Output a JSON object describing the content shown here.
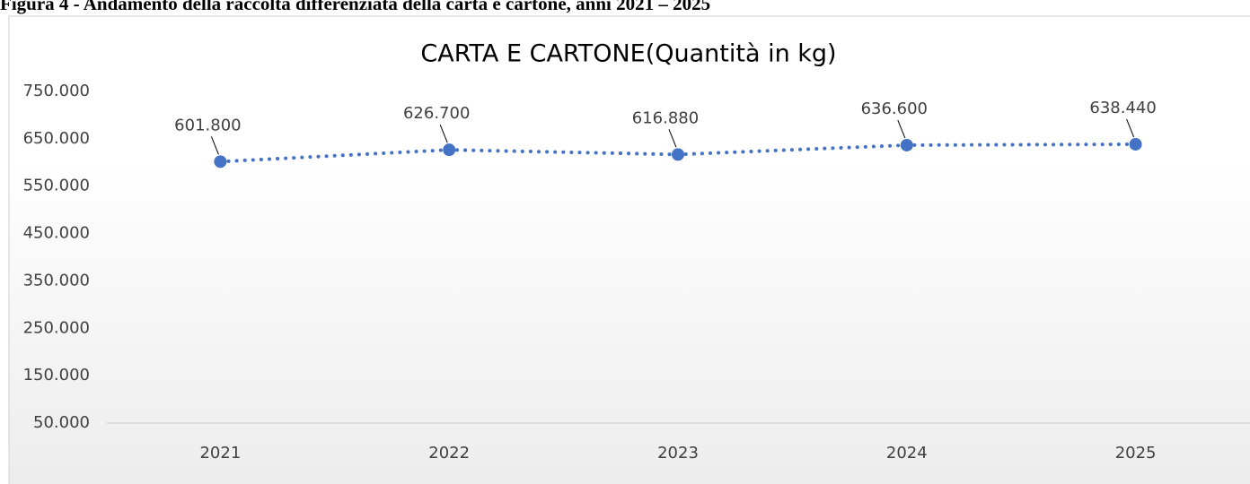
{
  "caption": "Figura 4 - Andamento della raccolta differenziata della carta e cartone, anni 2021 – 2025",
  "chart_data": {
    "type": "line",
    "title": "CARTA E CARTONE(Quantità in kg)",
    "categories": [
      "2021",
      "2022",
      "2023",
      "2024",
      "2025"
    ],
    "values": [
      601800,
      626700,
      616880,
      636600,
      638440
    ],
    "value_labels": [
      "601.800",
      "626.700",
      "616.880",
      "636.600",
      "638.440"
    ],
    "color": "#4472c4",
    "ylim": [
      50000,
      750000
    ],
    "yticks": [
      {
        "value": 50000,
        "label": "50.000"
      },
      {
        "value": 150000,
        "label": "150.000"
      },
      {
        "value": 250000,
        "label": "250.000"
      },
      {
        "value": 350000,
        "label": "350.000"
      },
      {
        "value": 450000,
        "label": "450.000"
      },
      {
        "value": 550000,
        "label": "550.000"
      },
      {
        "value": 650000,
        "label": "650.000"
      },
      {
        "value": 750000,
        "label": "750.000"
      }
    ],
    "grid": false
  }
}
